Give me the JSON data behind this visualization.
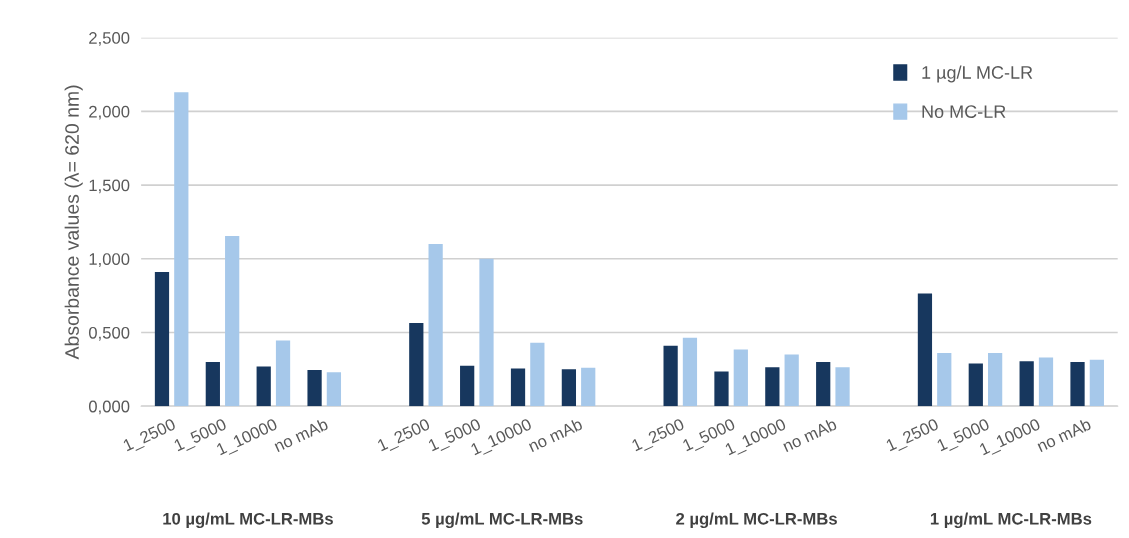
{
  "chart_data": {
    "type": "bar",
    "ylabel": "Absorbance values (λ= 620 nm)",
    "categories": [
      "1_2500",
      "1_5000",
      "1_10000",
      "no mAb",
      null,
      "1_2500",
      "1_5000",
      "1_10000",
      "no mAb",
      null,
      "1_2500",
      "1_5000",
      "1_10000",
      "no mAb",
      null,
      "1_2500",
      "1_5000",
      "1_10000",
      "no mAb"
    ],
    "series": [
      {
        "name": "1 µg/L MC-LR",
        "color": "#17375e",
        "values": [
          0.91,
          0.3,
          0.27,
          0.245,
          null,
          0.565,
          0.275,
          0.255,
          0.25,
          null,
          0.41,
          0.235,
          0.265,
          0.3,
          null,
          0.765,
          0.29,
          0.305,
          0.3
        ]
      },
      {
        "name": "No MC-LR",
        "color": "#a6c8ea",
        "values": [
          2.13,
          1.155,
          0.445,
          0.23,
          null,
          1.1,
          1.0,
          0.43,
          0.26,
          null,
          0.465,
          0.385,
          0.35,
          0.265,
          null,
          0.36,
          0.36,
          0.33,
          0.315
        ]
      }
    ],
    "ylim": [
      0,
      2.5
    ],
    "yticks": [
      {
        "value": 0,
        "label": "0,000"
      },
      {
        "value": 0.5,
        "label": "0,500"
      },
      {
        "value": 1.0,
        "label": "1,000"
      },
      {
        "value": 1.5,
        "label": "1,500"
      },
      {
        "value": 2.0,
        "label": "2,000"
      },
      {
        "value": 2.5,
        "label": "2,500"
      }
    ],
    "annotations": [
      "10 µg/mL MC-LR-MBs",
      "5 µg/mL MC-LR-MBs",
      "2 µg/mL MC-LR-MBs",
      "1 µg/mL MC-LR-MBs"
    ],
    "grid": "y",
    "legend": "top right"
  }
}
